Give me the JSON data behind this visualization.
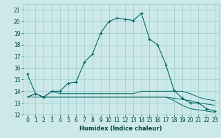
{
  "xlabel": "Humidex (Indice chaleur)",
  "x_values": [
    0,
    1,
    2,
    3,
    4,
    5,
    6,
    7,
    8,
    9,
    10,
    11,
    12,
    13,
    14,
    15,
    16,
    17,
    18,
    19,
    20,
    21,
    22,
    23
  ],
  "line1": [
    15.5,
    13.8,
    13.5,
    14.0,
    14.0,
    14.7,
    14.8,
    16.5,
    17.2,
    19.0,
    20.0,
    20.3,
    20.2,
    20.1,
    20.7,
    18.5,
    18.0,
    16.3,
    14.1,
    13.4,
    13.0,
    13.0,
    12.5,
    12.3
  ],
  "line2": [
    13.5,
    13.8,
    13.5,
    13.5,
    13.5,
    13.5,
    13.5,
    13.5,
    13.5,
    13.5,
    13.5,
    13.5,
    13.5,
    13.5,
    13.5,
    13.5,
    13.5,
    13.5,
    13.2,
    12.8,
    12.5,
    12.4,
    12.3,
    12.2
  ],
  "line3": [
    13.5,
    13.8,
    13.5,
    13.5,
    13.5,
    13.5,
    13.5,
    13.5,
    13.5,
    13.5,
    13.5,
    13.5,
    13.5,
    13.5,
    13.5,
    13.5,
    13.5,
    13.5,
    13.4,
    13.3,
    13.2,
    13.0,
    12.9,
    12.8
  ],
  "line4": [
    13.5,
    13.5,
    13.5,
    14.0,
    13.8,
    13.8,
    13.8,
    13.8,
    13.8,
    13.8,
    13.8,
    13.8,
    13.8,
    13.8,
    14.0,
    14.0,
    14.0,
    14.0,
    14.0,
    14.0,
    13.8,
    13.5,
    13.3,
    13.2
  ],
  "ylim": [
    12,
    21.5
  ],
  "yticks": [
    12,
    13,
    14,
    15,
    16,
    17,
    18,
    19,
    20,
    21
  ],
  "line_color": "#006666",
  "bg_color": "#cce8e8",
  "grid_color": "#99cccc",
  "tick_color": "#004444",
  "label_fontsize": 5.5,
  "xlabel_fontsize": 6.0
}
